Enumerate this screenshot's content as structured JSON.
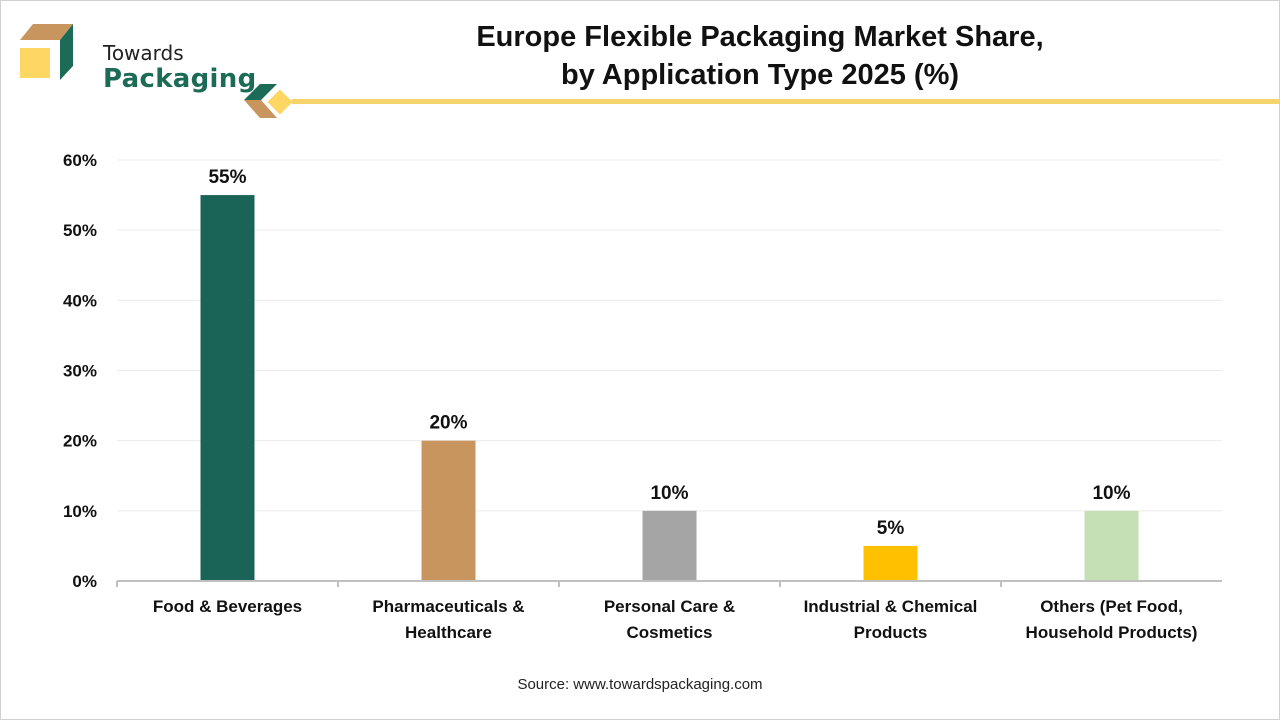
{
  "brand": {
    "line1": "Towards",
    "line2": "Packaging",
    "colors": {
      "green": "#1b6b57",
      "tan": "#c8955f",
      "yellow": "#fdd663"
    }
  },
  "header": {
    "title_line1": "Europe Flexible Packaging Market Share,",
    "title_line2": "by Application Type 2025 (%)"
  },
  "source": "Source: www.towardspackaging.com",
  "chart_data": {
    "type": "bar",
    "title": "Europe Flexible Packaging Market Share, by Application Type 2025 (%)",
    "xlabel": "",
    "ylabel": "",
    "categories": [
      "Food & Beverages",
      "Pharmaceuticals &\nHealthcare",
      "Personal Care &\nCosmetics",
      "Industrial & Chemical\nProducts",
      "Others (Pet Food,\nHousehold Products)"
    ],
    "values": [
      55,
      20,
      10,
      5,
      10
    ],
    "data_labels": [
      "55%",
      "20%",
      "10%",
      "5%",
      "10%"
    ],
    "colors": [
      "#1a6457",
      "#c8955f",
      "#a5a5a5",
      "#ffc000",
      "#c5e0b4"
    ],
    "ylim": [
      0,
      60
    ],
    "yticks": [
      0,
      10,
      20,
      30,
      40,
      50,
      60
    ],
    "ytick_labels": [
      "0%",
      "10%",
      "20%",
      "30%",
      "40%",
      "50%",
      "60%"
    ],
    "grid": true,
    "legend": "none"
  }
}
